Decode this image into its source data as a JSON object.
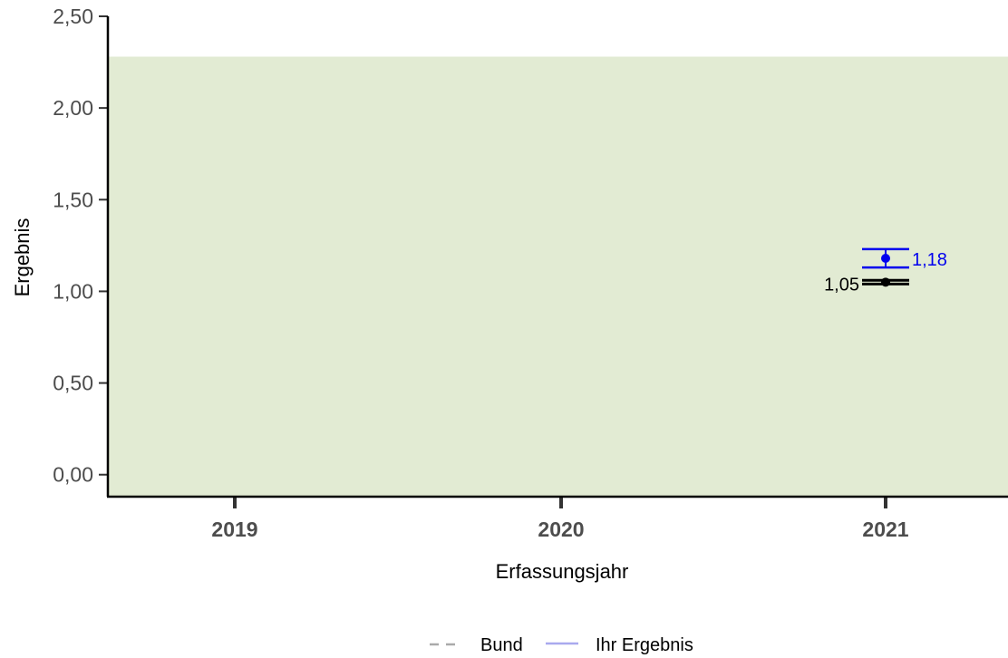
{
  "chart_data": {
    "type": "scatter",
    "xlabel": "Erfassungsjahr",
    "ylabel": "Ergebnis",
    "categories": [
      "2019",
      "2020",
      "2021"
    ],
    "ylim": [
      -0.12,
      2.5
    ],
    "yticks": [
      0.0,
      0.5,
      1.0,
      1.5,
      2.0,
      2.5
    ],
    "ytick_labels": [
      "0,00",
      "0,50",
      "1,00",
      "1,50",
      "2,00",
      "2,50"
    ],
    "reference_band": {
      "from": -0.12,
      "to": 2.28,
      "color": "#e2ebd3"
    },
    "series": [
      {
        "name": "Bund",
        "color": "#000000",
        "line_style": "dashed",
        "legend_color": "#aaaaaa",
        "points": [
          {
            "x": "2021",
            "y": 1.05,
            "ci_low": 1.04,
            "ci_high": 1.06,
            "label": "1,05"
          }
        ]
      },
      {
        "name": "Ihr Ergebnis",
        "color": "#0000ee",
        "line_style": "solid",
        "legend_color": "#a9a9ee",
        "points": [
          {
            "x": "2021",
            "y": 1.18,
            "ci_low": 1.13,
            "ci_high": 1.23,
            "label": "1,18"
          }
        ]
      }
    ],
    "grid": false,
    "legend_position": "bottom"
  }
}
